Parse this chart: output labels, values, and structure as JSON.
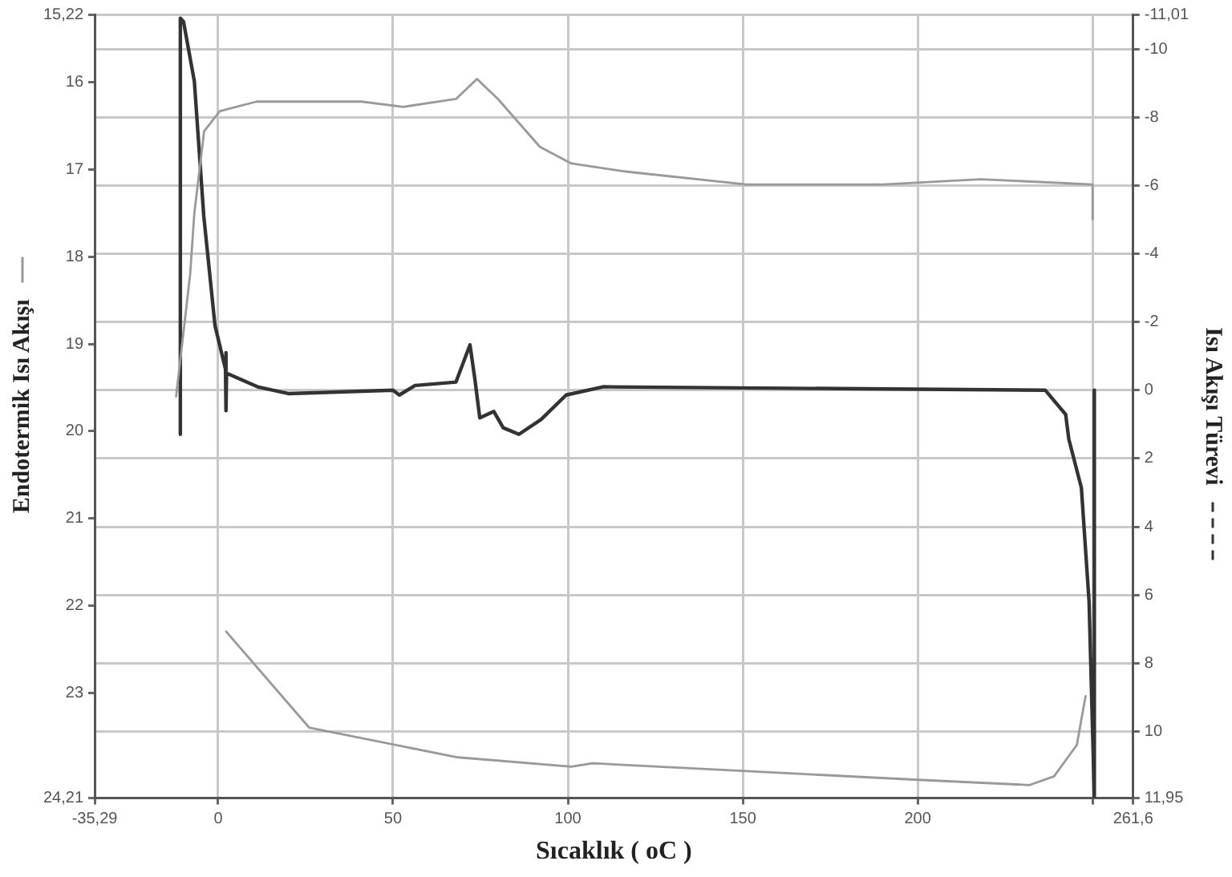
{
  "chart_data": {
    "type": "line",
    "xlabel": "Sıcaklık ( oC )",
    "ylabel": "Endotermik Isı Akışı",
    "y2label": "Isı Akışı Türevi",
    "xlim": [
      -35.29,
      261.6
    ],
    "xticks": [
      {
        "value": -35.29,
        "label": "-35,29"
      },
      0,
      50,
      100,
      150,
      200,
      {
        "value": 250,
        "label": null
      },
      {
        "value": 261.6,
        "label": "261,6"
      }
    ],
    "ylim": [
      24.21,
      15.22
    ],
    "yticks": [
      {
        "value": 15.22,
        "label": "15,22"
      },
      16,
      17,
      18,
      19,
      20,
      21,
      22,
      23,
      {
        "value": 24.21,
        "label": "24,21"
      }
    ],
    "y2lim": [
      11.95,
      -11.01
    ],
    "y2ticks": [
      {
        "value": -11.01,
        "label": "-11,01"
      },
      -10,
      -8,
      -6,
      -4,
      -2,
      0,
      2,
      4,
      6,
      8,
      10,
      {
        "value": 11.95,
        "label": "11,95"
      }
    ],
    "grid": true,
    "marker": "none",
    "series": [
      {
        "color": "#999999",
        "x": [
          -12,
          -10,
          -8,
          -6.8,
          -4,
          0.5,
          11,
          41,
          53,
          68,
          74,
          80,
          92,
          101,
          116,
          151,
          190,
          218,
          250,
          250,
          null,
          248,
          245.5,
          239,
          232,
          200,
          151,
          107,
          101,
          68,
          26,
          2.3
        ],
        "values": [
          19.6,
          18.9,
          18.2,
          17.5,
          16.56,
          16.33,
          16.22,
          16.22,
          16.28,
          16.19,
          15.96,
          16.19,
          16.74,
          16.93,
          17.02,
          17.17,
          17.17,
          17.11,
          17.17,
          17.57,
          null,
          23.04,
          23.6,
          23.96,
          24.06,
          24.0,
          23.9,
          23.81,
          23.85,
          23.74,
          23.4,
          22.3
        ]
      },
      {
        "color": "#333333",
        "axis": "y2",
        "x": [
          -10.8,
          -10.8,
          -9.9,
          -6.8,
          -4.1,
          -0.9,
          2.1,
          2.2,
          2.3,
          2.4,
          11.3,
          20.3,
          50,
          51.8,
          56.3,
          68,
          72,
          73.4,
          74.8,
          78.8,
          81.5,
          86,
          92.3,
          99.5,
          110,
          236.5,
          242.3,
          243.2,
          246.8,
          249,
          250.5,
          250.5
        ],
        "values": [
          1.29,
          -10.9,
          -10.8,
          -9.05,
          -5.1,
          -1.9,
          -0.62,
          -1.1,
          0.6,
          -0.5,
          -0.1,
          0.1,
          0,
          0.14,
          -0.14,
          -0.24,
          -1.33,
          -0.33,
          0.81,
          0.62,
          1.1,
          1.29,
          0.86,
          0.14,
          -0.1,
          0,
          0.71,
          1.43,
          2.86,
          6.2,
          11.9,
          0
        ]
      }
    ]
  }
}
